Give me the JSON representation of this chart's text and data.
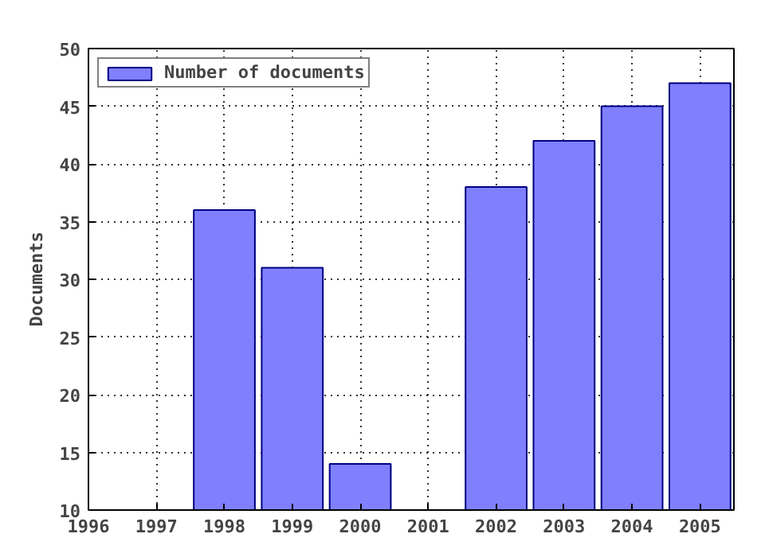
{
  "chart_data": {
    "type": "bar",
    "ylabel": "Documents",
    "x": [
      1998,
      1999,
      2000,
      2001,
      2002,
      2003,
      2004,
      2005
    ],
    "series": [
      {
        "name": "Number of documents",
        "color": "#8080ff",
        "values": [
          36,
          31,
          14,
          null,
          38,
          42,
          45,
          47
        ]
      }
    ],
    "xlim": [
      1996,
      2005.5
    ],
    "xticks": [
      1996,
      1997,
      1998,
      1999,
      2000,
      2001,
      2002,
      2003,
      2004,
      2005
    ],
    "ylim": [
      10,
      50
    ],
    "yticks": [
      10,
      15,
      20,
      25,
      30,
      35,
      40,
      45,
      50
    ],
    "grid": true,
    "legend": "top left"
  }
}
